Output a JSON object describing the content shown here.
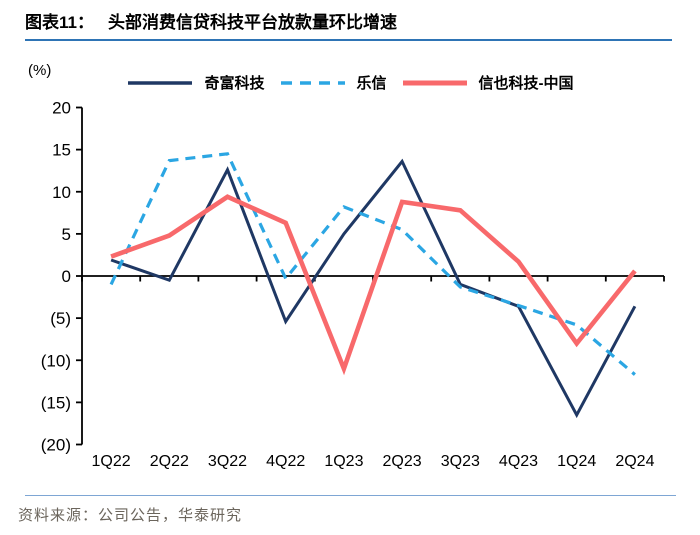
{
  "header": {
    "figure_label": "图表11：",
    "title": "头部消费信贷科技平台放款量环比增速"
  },
  "chart_data": {
    "type": "line",
    "title": "头部消费信贷科技平台放款量环比增速",
    "unit_label": "(%)",
    "categories": [
      "1Q22",
      "2Q22",
      "3Q22",
      "4Q22",
      "1Q23",
      "2Q23",
      "3Q23",
      "4Q23",
      "1Q24",
      "2Q24"
    ],
    "series": [
      {
        "name": "奇富科技",
        "color": "#1F3864",
        "style": "solid",
        "width": 3,
        "values": [
          1.9,
          -0.5,
          12.6,
          -5.4,
          5.0,
          13.6,
          -1.0,
          -3.6,
          -16.5,
          -3.6
        ]
      },
      {
        "name": "乐信",
        "color": "#2BA6E3",
        "color_hint": "light-blue-dashed",
        "style": "dashed",
        "width": 3.2,
        "values": [
          -1.0,
          13.7,
          14.5,
          -0.3,
          8.2,
          5.5,
          -1.3,
          -3.5,
          -5.8,
          -11.7
        ]
      },
      {
        "name": "信也科技-中国",
        "color": "#F8696B",
        "style": "solid",
        "width": 4.6,
        "values": [
          2.3,
          4.8,
          9.4,
          6.3,
          -11.0,
          8.8,
          7.8,
          1.7,
          -8.0,
          0.6
        ]
      }
    ],
    "ylim": [
      -20,
      20
    ],
    "ytick_step": 5,
    "ytick_labels_top_to_bottom": [
      "20",
      "15",
      "10",
      "5",
      "0",
      "(5)",
      "(10)",
      "(15)",
      "(20)"
    ],
    "negative_label_format": "parentheses",
    "legend_position": "top",
    "grid": false,
    "axis_color": "#000000"
  },
  "footer": {
    "source": "资料来源：公司公告，华泰研究"
  },
  "accents": {
    "title_underline": "#2E74B5",
    "footer_rule": "#7EA6D4"
  }
}
